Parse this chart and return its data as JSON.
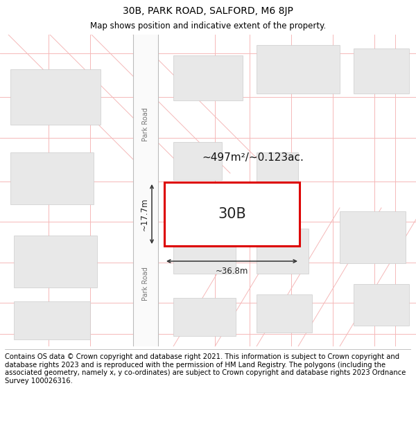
{
  "title": "30B, PARK ROAD, SALFORD, M6 8JP",
  "subtitle": "Map shows position and indicative extent of the property.",
  "footer": "Contains OS data © Crown copyright and database right 2021. This information is subject to Crown copyright and database rights 2023 and is reproduced with the permission of HM Land Registry. The polygons (including the associated geometry, namely x, y co-ordinates) are subject to Crown copyright and database rights 2023 Ordnance Survey 100026316.",
  "map_bg": "#ffffff",
  "grid_line_color": "#f5b8b8",
  "building_fill": "#e8e8e8",
  "building_edge": "#cccccc",
  "highlight_fill": "#ffffff",
  "highlight_edge": "#dd0000",
  "highlight_lw": 2.2,
  "highlight_label": "30B",
  "area_label": "~497m²/~0.123ac.",
  "width_label": "~36.8m",
  "height_label": "~17.7m",
  "road_label_upper": "Park Road",
  "road_label_lower": "Park Road",
  "title_fontsize": 10,
  "subtitle_fontsize": 8.5,
  "footer_fontsize": 7.2,
  "label_30b_fontsize": 15,
  "area_fontsize": 11,
  "dim_fontsize": 8.5
}
